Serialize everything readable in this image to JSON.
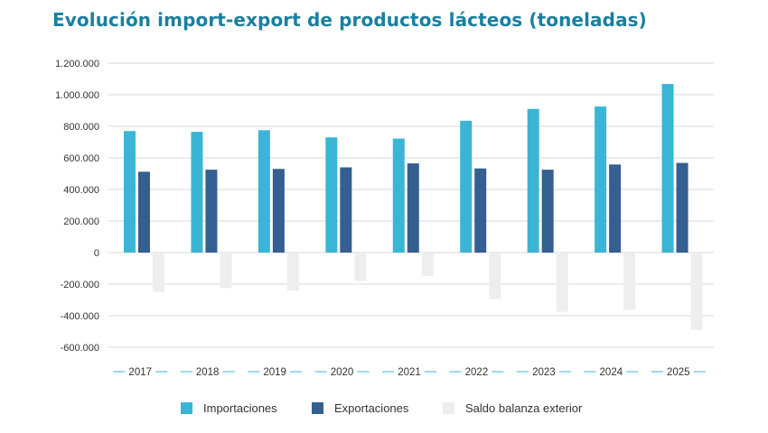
{
  "chart_data": {
    "type": "bar",
    "title": "Evolución import-export de productos lácteos (toneladas)",
    "xlabel": "",
    "ylabel": "",
    "categories": [
      "2017",
      "2018",
      "2019",
      "2020",
      "2021",
      "2022",
      "2023",
      "2024",
      "2025"
    ],
    "series": [
      {
        "name": "Importaciones",
        "color": "#3ab5d6",
        "values": [
          770000,
          765000,
          775000,
          730000,
          722000,
          835000,
          910000,
          925000,
          1068000
        ]
      },
      {
        "name": "Exportaciones",
        "color": "#355e91",
        "values": [
          512000,
          525000,
          530000,
          540000,
          565000,
          533000,
          525000,
          558000,
          568000
        ]
      },
      {
        "name": "Saldo balanza exterior",
        "color": "#eeeeee",
        "values": [
          -250000,
          -225000,
          -240000,
          -180000,
          -148000,
          -295000,
          -375000,
          -362000,
          -488000
        ]
      }
    ],
    "ylim": [
      -600000,
      1200000
    ],
    "yticks": [
      1200000,
      1000000,
      800000,
      600000,
      400000,
      200000,
      0,
      -200000,
      -400000,
      -600000
    ],
    "ytick_labels": [
      "1.200.000",
      "1.000.000",
      "800.000",
      "600.000",
      "400.000",
      "200.000",
      "0",
      "-200.000",
      "-400.000",
      "-600.000"
    ],
    "grid": true,
    "legend_position": "bottom"
  }
}
